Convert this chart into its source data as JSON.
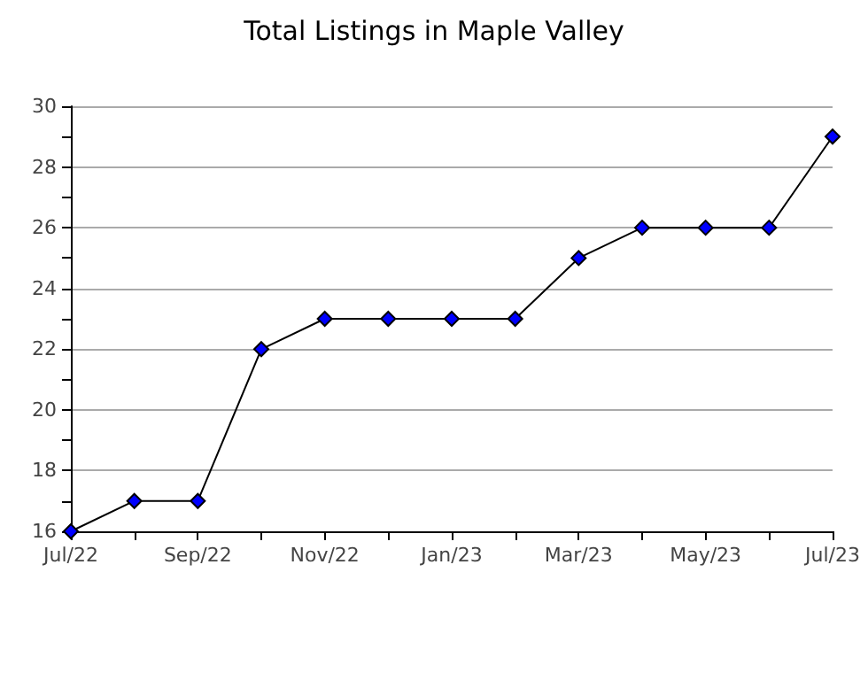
{
  "chart_data": {
    "type": "line",
    "title": "Total Listings in Maple Valley",
    "categories": [
      "Jul/22",
      null,
      "Sep/22",
      null,
      "Nov/22",
      null,
      "Jan/23",
      null,
      "Mar/23",
      null,
      "May/23",
      null,
      "Jul/23"
    ],
    "series": [
      {
        "color": "#0000ff",
        "values": [
          16,
          17,
          17,
          22,
          23,
          23,
          23,
          23,
          25,
          26,
          26,
          26,
          29
        ]
      }
    ],
    "ylim": [
      16,
      30
    ],
    "yticks": [
      16,
      {
        "value": 17,
        "label": null
      },
      18,
      {
        "value": 19,
        "label": null
      },
      20,
      {
        "value": 21,
        "label": null
      },
      22,
      {
        "value": 23,
        "label": null
      },
      24,
      {
        "value": 25,
        "label": null
      },
      26,
      {
        "value": 27,
        "label": null
      },
      28,
      {
        "value": 29,
        "label": null
      },
      30
    ],
    "grid": "y",
    "marker": "diamond",
    "line_style": "solid"
  }
}
